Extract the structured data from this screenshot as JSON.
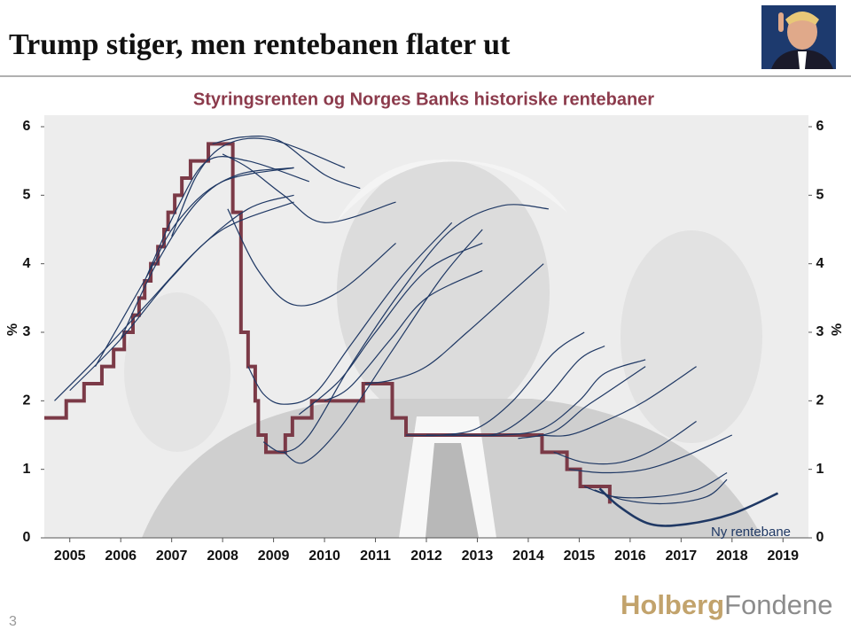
{
  "slide": {
    "title": "Trump stiger, men rentebanen flater ut",
    "page_number": "3",
    "logo": [
      "Holberg",
      "Fondene"
    ]
  },
  "chart_data": {
    "type": "line",
    "title": "Styringsrenten og Norges Banks historiske rentebaner",
    "y_label": "%",
    "y2_label": "%",
    "annotation": "Ny rentebane",
    "xlim": [
      2005,
      2020
    ],
    "xticks": [
      {
        "value": 2005.5,
        "label": "2005"
      },
      {
        "value": 2006.5,
        "label": "2006"
      },
      {
        "value": 2007.5,
        "label": "2007"
      },
      {
        "value": 2008.5,
        "label": "2008"
      },
      {
        "value": 2009.5,
        "label": "2009"
      },
      {
        "value": 2010.5,
        "label": "2010"
      },
      {
        "value": 2011.5,
        "label": "2011"
      },
      {
        "value": 2012.5,
        "label": "2012"
      },
      {
        "value": 2013.5,
        "label": "2013"
      },
      {
        "value": 2014.5,
        "label": "2014"
      },
      {
        "value": 2015.5,
        "label": "2015"
      },
      {
        "value": 2016.5,
        "label": "2016"
      },
      {
        "value": 2017.5,
        "label": "2017"
      },
      {
        "value": 2018.5,
        "label": "2018"
      },
      {
        "value": 2019.5,
        "label": "2019"
      }
    ],
    "ylim": [
      0,
      6
    ],
    "yticks": [
      0,
      1,
      2,
      3,
      4,
      5,
      6
    ],
    "y2lim": [
      0,
      6
    ],
    "y2ticks": [
      0,
      1,
      2,
      3,
      4,
      5,
      6
    ],
    "series": [
      {
        "color": "#7b3a47",
        "step": true,
        "x": [
          2005.0,
          2005.43,
          2005.78,
          2006.13,
          2006.36,
          2006.57,
          2006.74,
          2006.86,
          2006.97,
          2007.09,
          2007.23,
          2007.35,
          2007.43,
          2007.56,
          2007.7,
          2007.87,
          2008.22,
          2008.7,
          2008.86,
          2009.0,
          2009.14,
          2009.2,
          2009.35,
          2009.73,
          2009.87,
          2010.25,
          2011.26,
          2011.83,
          2012.1,
          2014.77,
          2015.26,
          2015.52,
          2016.1
        ],
        "values": [
          1.75,
          2.0,
          2.25,
          2.5,
          2.75,
          3.0,
          3.25,
          3.5,
          3.75,
          4.0,
          4.25,
          4.5,
          4.75,
          5.0,
          5.25,
          5.5,
          5.75,
          4.75,
          3.0,
          2.5,
          2.0,
          1.5,
          1.25,
          1.5,
          1.75,
          2.0,
          2.25,
          1.75,
          1.5,
          1.25,
          1.0,
          0.75,
          0.5
        ]
      },
      {
        "color": "#1f3864",
        "x": [
          2005.2,
          2006.0,
          2007.0,
          2008.0,
          2009.0,
          2009.9
        ],
        "values": [
          2.0,
          2.6,
          3.4,
          4.2,
          4.8,
          5.0
        ]
      },
      {
        "color": "#1f3864",
        "x": [
          2005.5,
          2006.5,
          2007.5,
          2008.5,
          2009.9
        ],
        "values": [
          2.15,
          2.9,
          3.8,
          4.5,
          4.9
        ]
      },
      {
        "color": "#1f3864",
        "x": [
          2006.0,
          2007.0,
          2007.6,
          2008.5,
          2009.9
        ],
        "values": [
          2.5,
          3.8,
          4.6,
          5.2,
          5.4
        ]
      },
      {
        "color": "#1f3864",
        "x": [
          2006.5,
          2007.2,
          2008.0,
          2008.8,
          2009.9
        ],
        "values": [
          2.9,
          4.0,
          4.9,
          5.3,
          5.4
        ]
      },
      {
        "color": "#1f3864",
        "x": [
          2007.0,
          2007.6,
          2008.2,
          2009.0,
          2010.2
        ],
        "values": [
          3.8,
          4.8,
          5.5,
          5.5,
          5.2
        ]
      },
      {
        "color": "#1f3864",
        "x": [
          2007.5,
          2008.0,
          2008.6,
          2009.5,
          2010.9
        ],
        "values": [
          4.4,
          5.3,
          5.75,
          5.8,
          5.4
        ]
      },
      {
        "color": "#1f3864",
        "x": [
          2008.3,
          2008.9,
          2009.6,
          2010.5,
          2011.2
        ],
        "values": [
          5.75,
          5.85,
          5.8,
          5.3,
          5.1
        ]
      },
      {
        "color": "#1f3864",
        "x": [
          2008.5,
          2009.0,
          2009.7,
          2010.5,
          2011.9
        ],
        "values": [
          5.6,
          5.4,
          5.0,
          4.6,
          4.9
        ]
      },
      {
        "color": "#1f3864",
        "x": [
          2008.6,
          2009.2,
          2009.9,
          2010.8,
          2011.9
        ],
        "values": [
          4.8,
          3.9,
          3.4,
          3.6,
          4.3
        ]
      },
      {
        "color": "#1f3864",
        "x": [
          2009.0,
          2009.3,
          2009.7,
          2010.3,
          2011.0,
          2012.0,
          2013.0
        ],
        "values": [
          2.5,
          2.1,
          1.95,
          2.1,
          2.8,
          3.8,
          4.6
        ]
      },
      {
        "color": "#1f3864",
        "x": [
          2009.3,
          2009.7,
          2010.2,
          2011.0,
          2012.0,
          2013.0,
          2014.0,
          2014.9
        ],
        "values": [
          1.4,
          1.25,
          1.5,
          2.5,
          3.6,
          4.5,
          4.85,
          4.8
        ]
      },
      {
        "color": "#1f3864",
        "x": [
          2009.7,
          2010.1,
          2010.8,
          2011.8,
          2012.8,
          2013.6
        ],
        "values": [
          1.25,
          1.1,
          1.6,
          2.7,
          3.8,
          4.5
        ]
      },
      {
        "color": "#1f3864",
        "x": [
          2010.0,
          2010.8,
          2011.5,
          2012.5,
          2013.6
        ],
        "values": [
          1.8,
          2.3,
          3.0,
          3.9,
          4.3
        ]
      },
      {
        "color": "#1f3864",
        "x": [
          2010.5,
          2011.0,
          2011.8,
          2012.5,
          2013.6
        ],
        "values": [
          2.0,
          2.2,
          2.9,
          3.5,
          3.9
        ]
      },
      {
        "color": "#1f3864",
        "x": [
          2011.3,
          2011.8,
          2012.5,
          2013.3,
          2014.2,
          2014.8
        ],
        "values": [
          2.25,
          2.3,
          2.5,
          3.0,
          3.6,
          4.0
        ]
      },
      {
        "color": "#1f3864",
        "x": [
          2012.1,
          2012.8,
          2013.5,
          2014.2,
          2015.0,
          2015.6
        ],
        "values": [
          1.5,
          1.5,
          1.6,
          2.0,
          2.7,
          3.0
        ]
      },
      {
        "color": "#1f3864",
        "x": [
          2012.5,
          2013.3,
          2014.0,
          2014.8,
          2015.5,
          2016.0
        ],
        "values": [
          1.5,
          1.5,
          1.55,
          2.0,
          2.6,
          2.8
        ]
      },
      {
        "color": "#1f3864",
        "x": [
          2013.0,
          2014.0,
          2014.8,
          2015.5,
          2016.0,
          2016.8
        ],
        "values": [
          1.5,
          1.5,
          1.6,
          2.0,
          2.4,
          2.6
        ]
      },
      {
        "color": "#1f3864",
        "x": [
          2014.3,
          2015.0,
          2015.6,
          2016.0,
          2016.8
        ],
        "values": [
          1.45,
          1.55,
          1.9,
          2.1,
          2.5
        ]
      },
      {
        "color": "#1f3864",
        "x": [
          2014.7,
          2015.3,
          2016.0,
          2016.8,
          2017.8
        ],
        "values": [
          1.5,
          1.5,
          1.7,
          2.0,
          2.5
        ]
      },
      {
        "color": "#1f3864",
        "x": [
          2015.0,
          2015.6,
          2016.3,
          2017.0,
          2017.8
        ],
        "values": [
          1.25,
          1.1,
          1.1,
          1.3,
          1.7
        ]
      },
      {
        "color": "#1f3864",
        "x": [
          2015.3,
          2016.0,
          2016.8,
          2017.6,
          2018.5
        ],
        "values": [
          1.0,
          0.95,
          1.0,
          1.2,
          1.5
        ]
      },
      {
        "color": "#1f3864",
        "x": [
          2015.6,
          2016.2,
          2017.0,
          2017.8,
          2018.4
        ],
        "values": [
          0.75,
          0.6,
          0.6,
          0.7,
          0.95
        ]
      },
      {
        "color": "#1f3864",
        "x": [
          2015.8,
          2016.4,
          2017.2,
          2018.0,
          2018.4
        ],
        "values": [
          0.7,
          0.55,
          0.5,
          0.6,
          0.85
        ]
      },
      {
        "color": "#1f3864",
        "thick": true,
        "x": [
          2015.9,
          2016.3,
          2016.9,
          2017.6,
          2018.5,
          2019.4
        ],
        "values": [
          0.72,
          0.45,
          0.2,
          0.2,
          0.35,
          0.65
        ]
      }
    ]
  }
}
